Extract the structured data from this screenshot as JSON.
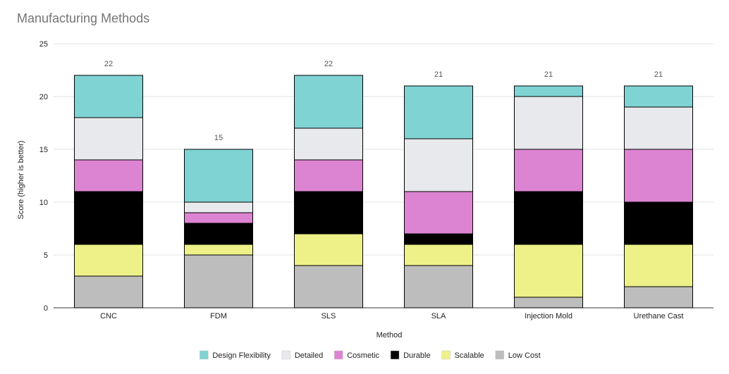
{
  "chart_data": {
    "type": "bar",
    "stacked": true,
    "title": "Manufacturing Methods",
    "xlabel": "Method",
    "ylabel": "Score (higher is better)",
    "ylim": [
      0,
      25
    ],
    "yticks": [
      0,
      5,
      10,
      15,
      20,
      25
    ],
    "grid": true,
    "legend_position": "bottom",
    "categories": [
      "CNC",
      "FDM",
      "SLS",
      "SLA",
      "Injection Mold",
      "Urethane Cast"
    ],
    "totals": [
      22,
      15,
      22,
      21,
      21,
      21
    ],
    "series": [
      {
        "name": "Low Cost",
        "color": "#bdbdbd",
        "values": [
          3,
          5,
          4,
          4,
          1,
          2
        ]
      },
      {
        "name": "Scalable",
        "color": "#eef188",
        "values": [
          3,
          1,
          3,
          2,
          5,
          4
        ]
      },
      {
        "name": "Durable",
        "color": "#000000",
        "values": [
          5,
          2,
          4,
          1,
          5,
          4
        ]
      },
      {
        "name": "Cosmetic",
        "color": "#dc84d1",
        "values": [
          3,
          1,
          3,
          4,
          4,
          5
        ]
      },
      {
        "name": "Detailed",
        "color": "#e8e9ec",
        "values": [
          4,
          1,
          3,
          5,
          5,
          4
        ]
      },
      {
        "name": "Design Flexibility",
        "color": "#7fd3d3",
        "values": [
          4,
          5,
          5,
          5,
          1,
          2
        ]
      }
    ],
    "legend_order": [
      "Design Flexibility",
      "Detailed",
      "Cosmetic",
      "Durable",
      "Scalable",
      "Low Cost"
    ]
  }
}
